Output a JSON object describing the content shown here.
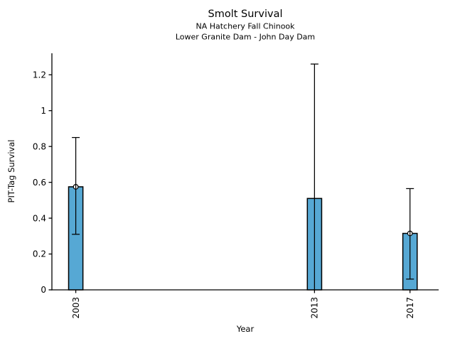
{
  "header": {
    "title": "Smolt Survival",
    "subtitle1": "NA Hatchery Fall Chinook",
    "subtitle2": "Lower Granite Dam - John Day Dam"
  },
  "chart_data": {
    "type": "bar",
    "title": "Smolt Survival",
    "subtitles": [
      "NA Hatchery Fall Chinook",
      "Lower Granite Dam - John Day Dam"
    ],
    "xlabel": "Year",
    "ylabel": "PIT-Tag Survival",
    "categories": [
      2003,
      2013,
      2017
    ],
    "category_labels": [
      "2003",
      "2013",
      "2017"
    ],
    "values": [
      0.575,
      0.51,
      0.315
    ],
    "error_low": [
      0.31,
      0.0,
      0.06
    ],
    "error_high": [
      0.85,
      1.26,
      0.565
    ],
    "markers": [
      true,
      false,
      true
    ],
    "cap_low": [
      true,
      false,
      true
    ],
    "yticks": [
      0,
      0.2,
      0.4,
      0.6,
      0.8,
      1.0,
      1.2
    ],
    "ytick_labels": [
      "0",
      "0.2",
      "0.4",
      "0.6",
      "0.8",
      "1",
      "1.2"
    ],
    "ylim": [
      0,
      1.32
    ],
    "xlim": [
      2002,
      2018.2
    ],
    "bar_width_years": 0.6,
    "grid": false,
    "legend": null,
    "colors": {
      "bar_fill": "#56a8d4",
      "bar_edge": "#000000",
      "error_bar": "#000000",
      "marker_fill": "#ffffff",
      "marker_edge": "#000000",
      "axis": "#000000",
      "text": "#000000",
      "background": "#ffffff"
    }
  }
}
